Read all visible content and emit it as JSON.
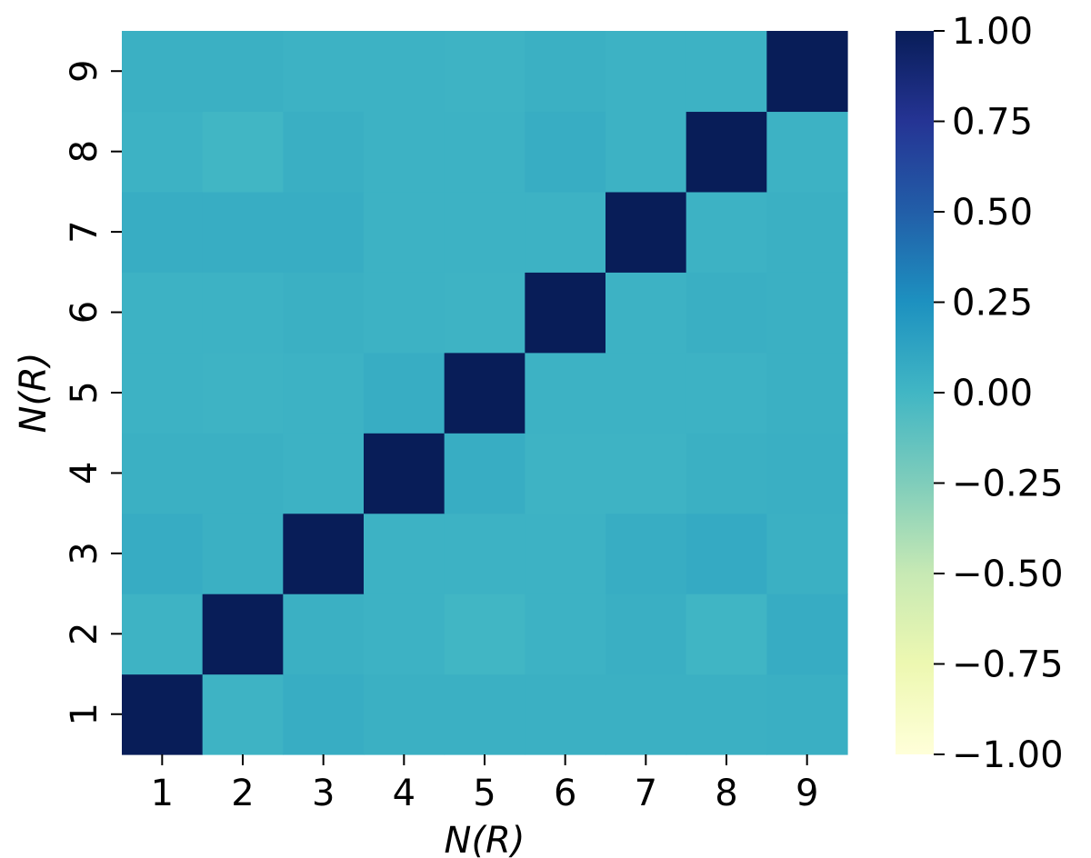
{
  "chart_data": {
    "type": "heatmap",
    "x_categories": [
      "1",
      "2",
      "3",
      "4",
      "5",
      "6",
      "7",
      "8",
      "9"
    ],
    "y_categories": [
      "1",
      "2",
      "3",
      "4",
      "5",
      "6",
      "7",
      "8",
      "9"
    ],
    "xlabel": "N(R)",
    "ylabel": "N(R)",
    "values": [
      [
        1.0,
        0.02,
        0.06,
        0.04,
        0.04,
        0.04,
        0.04,
        0.04,
        0.05
      ],
      [
        0.02,
        1.0,
        0.04,
        0.03,
        0.0,
        0.03,
        0.05,
        0.01,
        0.07
      ],
      [
        0.07,
        0.04,
        1.0,
        0.03,
        0.03,
        0.03,
        0.06,
        0.08,
        0.04
      ],
      [
        0.04,
        0.04,
        0.03,
        1.0,
        0.06,
        0.02,
        0.02,
        0.04,
        0.05
      ],
      [
        0.03,
        0.02,
        0.03,
        0.06,
        1.0,
        0.03,
        0.03,
        0.03,
        0.04
      ],
      [
        0.03,
        0.03,
        0.04,
        0.03,
        0.02,
        1.0,
        0.03,
        0.05,
        0.04
      ],
      [
        0.06,
        0.06,
        0.06,
        0.03,
        0.03,
        0.03,
        1.0,
        0.03,
        0.04
      ],
      [
        0.03,
        0.0,
        0.05,
        0.03,
        0.03,
        0.06,
        0.03,
        1.0,
        0.03
      ],
      [
        0.04,
        0.04,
        0.03,
        0.03,
        0.02,
        0.04,
        0.03,
        0.03,
        1.0
      ]
    ],
    "colorbar": {
      "range": [
        -1.0,
        1.0
      ],
      "tick_values": [
        1.0,
        0.75,
        0.5,
        0.25,
        0.0,
        -0.25,
        -0.5,
        -0.75,
        -1.0
      ],
      "tick_labels": [
        "1.00",
        "0.75",
        "0.50",
        "0.25",
        "0.00",
        "−0.25",
        "−0.50",
        "−0.75",
        "−1.00"
      ],
      "colormap": "YlGnBu",
      "colormap_stops": [
        "#ffffd9",
        "#edf8b1",
        "#c7e9b4",
        "#7fcdbb",
        "#41b6c4",
        "#1d91c0",
        "#225ea8",
        "#253494",
        "#081d58"
      ]
    },
    "grid": false
  }
}
